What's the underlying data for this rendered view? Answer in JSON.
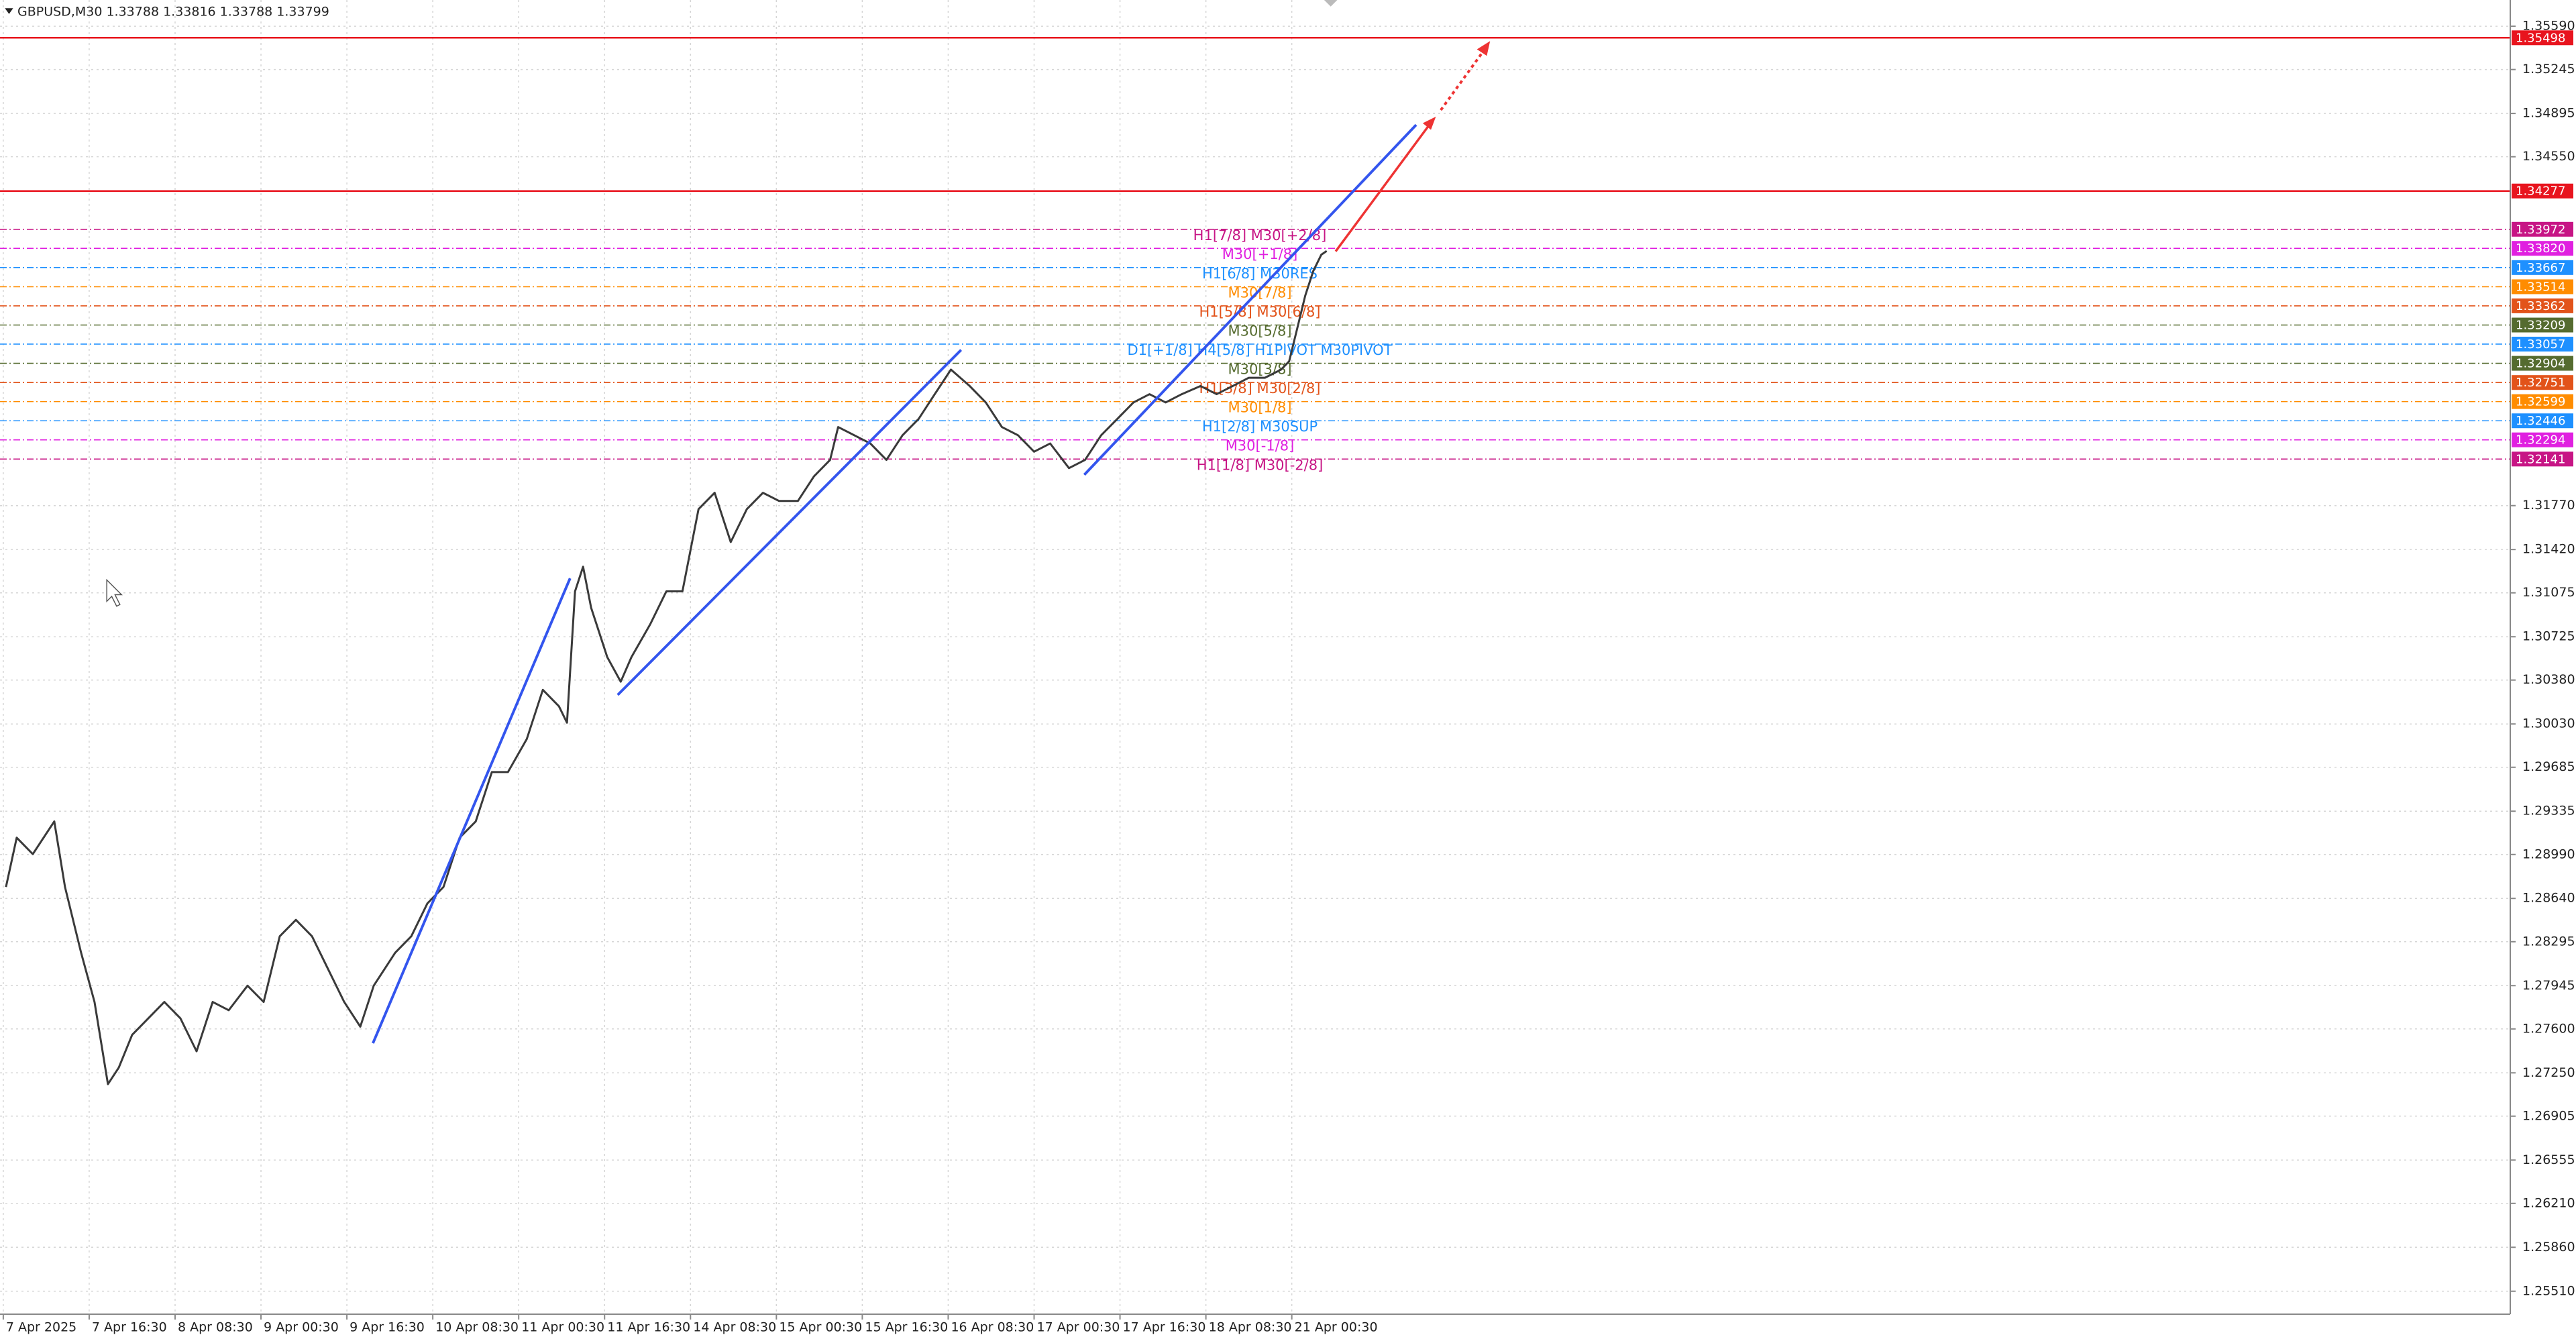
{
  "chart_data": {
    "type": "line",
    "title": "GBPUSD,M30  1.33788 1.33816 1.33788 1.33799",
    "color": "#3a3a3a",
    "grid": true,
    "xlim": [
      -1.22,
      933.9
    ],
    "ylim": [
      1.25327,
      1.35799
    ],
    "x": [
      1,
      5,
      11,
      19,
      23,
      29,
      34,
      39,
      43,
      48,
      54,
      60,
      66,
      72,
      78,
      84,
      91,
      97,
      103,
      109,
      115,
      121,
      127,
      133,
      138,
      146,
      152,
      158,
      164,
      170,
      176,
      182,
      188,
      195,
      201,
      207,
      210,
      213,
      216,
      219,
      225,
      230,
      234,
      241,
      247,
      253,
      259,
      265,
      271,
      277,
      283,
      289,
      296,
      302,
      308,
      311,
      317,
      323,
      329,
      335,
      341,
      347,
      353,
      360,
      366,
      372,
      378,
      384,
      390,
      397,
      403,
      409,
      415,
      421,
      427,
      433,
      439,
      446,
      452,
      458,
      464,
      470,
      476,
      479,
      482,
      485,
      488,
      491,
      493
    ],
    "values": [
      1.28731,
      1.29124,
      1.28993,
      1.29254,
      1.28731,
      1.28207,
      1.27815,
      1.2716,
      1.27291,
      1.27553,
      1.27684,
      1.27815,
      1.27684,
      1.27422,
      1.27815,
      1.27749,
      1.27945,
      1.27815,
      1.28338,
      1.28469,
      1.28338,
      1.28076,
      1.27815,
      1.27618,
      1.27945,
      1.28207,
      1.28338,
      1.286,
      1.28731,
      1.29124,
      1.29254,
      1.29647,
      1.29647,
      1.29909,
      1.30302,
      1.30171,
      1.3004,
      1.31087,
      1.31283,
      1.30956,
      1.30563,
      1.30367,
      1.30563,
      1.30825,
      1.31087,
      1.31087,
      1.31742,
      1.31872,
      1.3148,
      1.31742,
      1.31872,
      1.31807,
      1.31807,
      1.32003,
      1.32134,
      1.32396,
      1.32331,
      1.32265,
      1.32134,
      1.32331,
      1.32461,
      1.32658,
      1.32854,
      1.32723,
      1.32592,
      1.32396,
      1.32331,
      1.322,
      1.32265,
      1.32069,
      1.32134,
      1.32331,
      1.32461,
      1.32592,
      1.32658,
      1.32592,
      1.32658,
      1.32723,
      1.32658,
      1.32723,
      1.32789,
      1.32789,
      1.32854,
      1.3292,
      1.33181,
      1.33443,
      1.3364,
      1.3377,
      1.33799
    ],
    "xticks": [
      {
        "value": 0,
        "label": "7 Apr 2025"
      },
      {
        "value": 32,
        "label": "7 Apr 16:30"
      },
      {
        "value": 64,
        "label": "8 Apr 08:30"
      },
      {
        "value": 96,
        "label": "9 Apr 00:30"
      },
      {
        "value": 128,
        "label": "9 Apr 16:30"
      },
      {
        "value": 160,
        "label": "10 Apr 08:30"
      },
      {
        "value": 192,
        "label": "11 Apr 00:30"
      },
      {
        "value": 224,
        "label": "11 Apr 16:30"
      },
      {
        "value": 256,
        "label": "14 Apr 08:30"
      },
      {
        "value": 288,
        "label": "15 Apr 00:30"
      },
      {
        "value": 320,
        "label": "15 Apr 16:30"
      },
      {
        "value": 352,
        "label": "16 Apr 08:30"
      },
      {
        "value": 384,
        "label": "17 Apr 00:30"
      },
      {
        "value": 416,
        "label": "17 Apr 16:30"
      },
      {
        "value": 448,
        "label": "18 Apr 08:30"
      },
      {
        "value": 480,
        "label": "21 Apr 00:30"
      }
    ],
    "yticks": [
      {
        "value": 1.3559,
        "label": "1.35590"
      },
      {
        "value": 1.35245,
        "label": "1.35245"
      },
      {
        "value": 1.34895,
        "label": "1.34895"
      },
      {
        "value": 1.3455,
        "label": "1.34550"
      },
      {
        "value": 1.3177,
        "label": "1.31770"
      },
      {
        "value": 1.3142,
        "label": "1.31420"
      },
      {
        "value": 1.31075,
        "label": "1.31075"
      },
      {
        "value": 1.30725,
        "label": "1.30725"
      },
      {
        "value": 1.3038,
        "label": "1.30380"
      },
      {
        "value": 1.3003,
        "label": "1.30030"
      },
      {
        "value": 1.29685,
        "label": "1.29685"
      },
      {
        "value": 1.29335,
        "label": "1.29335"
      },
      {
        "value": 1.2899,
        "label": "1.28990"
      },
      {
        "value": 1.2864,
        "label": "1.28640"
      },
      {
        "value": 1.28295,
        "label": "1.28295"
      },
      {
        "value": 1.27945,
        "label": "1.27945"
      },
      {
        "value": 1.276,
        "label": "1.27600"
      },
      {
        "value": 1.2725,
        "label": "1.27250"
      },
      {
        "value": 1.26905,
        "label": "1.26905"
      },
      {
        "value": 1.26555,
        "label": "1.26555"
      },
      {
        "value": 1.2621,
        "label": "1.26210"
      },
      {
        "value": 1.2586,
        "label": "1.25860"
      },
      {
        "value": 1.2551,
        "label": "1.25510"
      }
    ],
    "levels": [
      {
        "value": 1.35498,
        "label": "1.35498",
        "color": "#e8141e"
      },
      {
        "value": 1.34277,
        "label": "1.34277",
        "color": "#e8141e"
      },
      {
        "value": 1.33972,
        "label": "1.33972",
        "color": "#c71585",
        "annotation": "H1[7/8] M30[+2/8]"
      },
      {
        "value": 1.3382,
        "label": "1.33820",
        "color": "#e020e0",
        "annotation": "M30[+1/8]"
      },
      {
        "value": 1.33667,
        "label": "1.33667",
        "color": "#1e90ff",
        "annotation": "H1[6/8] M30RES"
      },
      {
        "value": 1.33514,
        "label": "1.33514",
        "color": "#ff8c00",
        "annotation": "M30[7/8]"
      },
      {
        "value": 1.33362,
        "label": "1.33362",
        "color": "#e2531a",
        "annotation": "H1[5/8] M30[6/8]"
      },
      {
        "value": 1.33209,
        "label": "1.33209",
        "color": "#556b2f",
        "annotation": "M30[5/8]"
      },
      {
        "value": 1.33057,
        "label": "1.33057",
        "color": "#1e90ff",
        "annotation": "D1[+1/8] H4[5/8] H1PIVOT M30PIVOT"
      },
      {
        "value": 1.32904,
        "label": "1.32904",
        "color": "#556b2f",
        "annotation": "M30[3/8]"
      },
      {
        "value": 1.32751,
        "label": "1.32751",
        "color": "#e2531a",
        "annotation": "H1[3/8] M30[2/8]"
      },
      {
        "value": 1.32599,
        "label": "1.32599",
        "color": "#ff8c00",
        "annotation": "M30[1/8]"
      },
      {
        "value": 1.32446,
        "label": "1.32446",
        "color": "#1e90ff",
        "annotation": "H1[2/8] M30SUP"
      },
      {
        "value": 1.32294,
        "label": "1.32294",
        "color": "#e020e0",
        "annotation": "M30[-1/8]"
      },
      {
        "value": 1.32141,
        "label": "1.32141",
        "color": "#c71585",
        "annotation": "H1[1/8] M30[-2/8]"
      }
    ]
  }
}
